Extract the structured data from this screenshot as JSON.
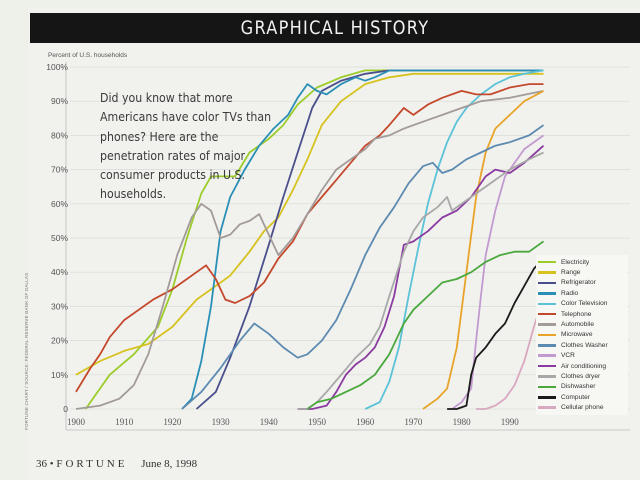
{
  "header": {
    "title": "GRAPHICAL HISTORY"
  },
  "blurb": "Did you know that more Americans have color TVs than phones? Here are the penetration rates of major consumer products in U.S. households.",
  "footer": {
    "page": "36",
    "publication": "FORTUNE",
    "date": "June 8, 1998"
  },
  "source_note": "FORTUNE CHART / SOURCE: FEDERAL RESERVE BANK OF DALLAS",
  "chart_data": {
    "type": "line",
    "title": "GRAPHICAL HISTORY",
    "ylabel": "Percent of U.S. households",
    "xlabel": "",
    "xlim": [
      1900,
      1997
    ],
    "ylim": [
      0,
      100
    ],
    "xticks": [
      "1900",
      "1910",
      "1920",
      "1930",
      "1940",
      "1950",
      "1960",
      "1970",
      "1980",
      "1990"
    ],
    "yticks": [
      "0",
      "10%",
      "20%",
      "30%",
      "40%",
      "50%",
      "60%",
      "70%",
      "80%",
      "90%",
      "100%"
    ],
    "grid": true,
    "legend_position": "bottom-right",
    "series": [
      {
        "name": "Electricity",
        "color": "#9ccc2a",
        "points": [
          [
            1902,
            0
          ],
          [
            1907,
            10
          ],
          [
            1912,
            16
          ],
          [
            1917,
            24
          ],
          [
            1920,
            35
          ],
          [
            1923,
            50
          ],
          [
            1926,
            63
          ],
          [
            1928,
            68
          ],
          [
            1930,
            68
          ],
          [
            1933,
            68
          ],
          [
            1936,
            75
          ],
          [
            1940,
            79
          ],
          [
            1943,
            83
          ],
          [
            1946,
            89
          ],
          [
            1950,
            94
          ],
          [
            1955,
            97
          ],
          [
            1960,
            99
          ],
          [
            1970,
            99
          ],
          [
            1997,
            99
          ]
        ]
      },
      {
        "name": "Range",
        "color": "#d6c21e",
        "points": [
          [
            1900,
            10
          ],
          [
            1905,
            14
          ],
          [
            1910,
            17
          ],
          [
            1915,
            19
          ],
          [
            1920,
            24
          ],
          [
            1925,
            32
          ],
          [
            1930,
            37
          ],
          [
            1932,
            39
          ],
          [
            1936,
            46
          ],
          [
            1939,
            52
          ],
          [
            1942,
            56
          ],
          [
            1945,
            64
          ],
          [
            1948,
            73
          ],
          [
            1951,
            83
          ],
          [
            1955,
            90
          ],
          [
            1960,
            95
          ],
          [
            1965,
            97
          ],
          [
            1970,
            98
          ],
          [
            1997,
            98
          ]
        ]
      },
      {
        "name": "Refrigerator",
        "color": "#4a4f8c",
        "points": [
          [
            1925,
            0
          ],
          [
            1929,
            5
          ],
          [
            1932,
            15
          ],
          [
            1936,
            30
          ],
          [
            1940,
            48
          ],
          [
            1943,
            62
          ],
          [
            1946,
            75
          ],
          [
            1949,
            88
          ],
          [
            1951,
            93
          ],
          [
            1955,
            96
          ],
          [
            1960,
            98
          ],
          [
            1965,
            99
          ],
          [
            1970,
            99
          ],
          [
            1997,
            99
          ]
        ]
      },
      {
        "name": "Radio",
        "color": "#2a8fb6",
        "points": [
          [
            1922,
            0
          ],
          [
            1924,
            3
          ],
          [
            1926,
            14
          ],
          [
            1928,
            30
          ],
          [
            1930,
            52
          ],
          [
            1932,
            62
          ],
          [
            1935,
            70
          ],
          [
            1938,
            77
          ],
          [
            1941,
            82
          ],
          [
            1944,
            86
          ],
          [
            1946,
            91
          ],
          [
            1948,
            95
          ],
          [
            1950,
            93
          ],
          [
            1952,
            92
          ],
          [
            1955,
            95
          ],
          [
            1958,
            97
          ],
          [
            1960,
            96
          ],
          [
            1962,
            97
          ],
          [
            1965,
            99
          ],
          [
            1970,
            99
          ],
          [
            1997,
            99
          ]
        ]
      },
      {
        "name": "Color Television",
        "color": "#5bc2d8",
        "points": [
          [
            1960,
            0
          ],
          [
            1963,
            2
          ],
          [
            1965,
            8
          ],
          [
            1967,
            18
          ],
          [
            1969,
            33
          ],
          [
            1971,
            47
          ],
          [
            1973,
            60
          ],
          [
            1975,
            70
          ],
          [
            1977,
            78
          ],
          [
            1979,
            84
          ],
          [
            1981,
            88
          ],
          [
            1984,
            92
          ],
          [
            1987,
            95
          ],
          [
            1990,
            97
          ],
          [
            1993,
            98
          ],
          [
            1997,
            99
          ]
        ]
      },
      {
        "name": "Telephone",
        "color": "#c4482c",
        "points": [
          [
            1900,
            5
          ],
          [
            1903,
            12
          ],
          [
            1905,
            16
          ],
          [
            1907,
            21
          ],
          [
            1910,
            26
          ],
          [
            1913,
            29
          ],
          [
            1916,
            32
          ],
          [
            1920,
            35
          ],
          [
            1922,
            37
          ],
          [
            1925,
            40
          ],
          [
            1927,
            42
          ],
          [
            1929,
            38
          ],
          [
            1931,
            32
          ],
          [
            1933,
            31
          ],
          [
            1936,
            33
          ],
          [
            1939,
            37
          ],
          [
            1942,
            44
          ],
          [
            1945,
            49
          ],
          [
            1948,
            57
          ],
          [
            1951,
            62
          ],
          [
            1954,
            67
          ],
          [
            1957,
            72
          ],
          [
            1960,
            77
          ],
          [
            1963,
            80
          ],
          [
            1965,
            83
          ],
          [
            1968,
            88
          ],
          [
            1970,
            86
          ],
          [
            1973,
            89
          ],
          [
            1976,
            91
          ],
          [
            1980,
            93
          ],
          [
            1983,
            92
          ],
          [
            1986,
            92
          ],
          [
            1990,
            94
          ],
          [
            1994,
            95
          ],
          [
            1997,
            95
          ]
        ]
      },
      {
        "name": "Automobile",
        "color": "#a39a9a",
        "points": [
          [
            1900,
            0
          ],
          [
            1905,
            1
          ],
          [
            1909,
            3
          ],
          [
            1912,
            7
          ],
          [
            1915,
            16
          ],
          [
            1918,
            30
          ],
          [
            1921,
            45
          ],
          [
            1924,
            56
          ],
          [
            1926,
            60
          ],
          [
            1928,
            58
          ],
          [
            1930,
            50
          ],
          [
            1932,
            51
          ],
          [
            1934,
            54
          ],
          [
            1936,
            55
          ],
          [
            1938,
            57
          ],
          [
            1940,
            51
          ],
          [
            1942,
            45
          ],
          [
            1945,
            50
          ],
          [
            1948,
            57
          ],
          [
            1951,
            64
          ],
          [
            1954,
            70
          ],
          [
            1957,
            73
          ],
          [
            1960,
            76
          ],
          [
            1962,
            79
          ],
          [
            1965,
            80
          ],
          [
            1968,
            82
          ],
          [
            1972,
            84
          ],
          [
            1976,
            86
          ],
          [
            1980,
            88
          ],
          [
            1984,
            90
          ],
          [
            1990,
            91
          ],
          [
            1997,
            93
          ]
        ]
      },
      {
        "name": "Microwave",
        "color": "#e8a42a",
        "points": [
          [
            1972,
            0
          ],
          [
            1975,
            3
          ],
          [
            1977,
            6
          ],
          [
            1979,
            18
          ],
          [
            1981,
            40
          ],
          [
            1983,
            62
          ],
          [
            1985,
            75
          ],
          [
            1987,
            82
          ],
          [
            1990,
            86
          ],
          [
            1993,
            90
          ],
          [
            1997,
            93
          ]
        ]
      },
      {
        "name": "Clothes Washer",
        "color": "#5d8ab0",
        "points": [
          [
            1922,
            0
          ],
          [
            1926,
            5
          ],
          [
            1930,
            12
          ],
          [
            1934,
            20
          ],
          [
            1937,
            25
          ],
          [
            1940,
            22
          ],
          [
            1943,
            18
          ],
          [
            1946,
            15
          ],
          [
            1948,
            16
          ],
          [
            1951,
            20
          ],
          [
            1954,
            26
          ],
          [
            1957,
            35
          ],
          [
            1960,
            45
          ],
          [
            1963,
            53
          ],
          [
            1966,
            59
          ],
          [
            1969,
            66
          ],
          [
            1972,
            71
          ],
          [
            1974,
            72
          ],
          [
            1976,
            69
          ],
          [
            1978,
            70
          ],
          [
            1981,
            73
          ],
          [
            1984,
            75
          ],
          [
            1987,
            77
          ],
          [
            1990,
            78
          ],
          [
            1994,
            80
          ],
          [
            1997,
            83
          ]
        ]
      },
      {
        "name": "VCR",
        "color": "#c39ad0",
        "points": [
          [
            1978,
            0
          ],
          [
            1980,
            2
          ],
          [
            1982,
            6
          ],
          [
            1983,
            20
          ],
          [
            1984,
            33
          ],
          [
            1985,
            45
          ],
          [
            1987,
            58
          ],
          [
            1989,
            68
          ],
          [
            1991,
            72
          ],
          [
            1993,
            76
          ],
          [
            1997,
            80
          ]
        ]
      },
      {
        "name": "Air conditioning",
        "color": "#8a3aa0",
        "points": [
          [
            1946,
            0
          ],
          [
            1949,
            0
          ],
          [
            1952,
            1
          ],
          [
            1954,
            5
          ],
          [
            1956,
            10
          ],
          [
            1958,
            13
          ],
          [
            1960,
            15
          ],
          [
            1962,
            18
          ],
          [
            1964,
            24
          ],
          [
            1966,
            33
          ],
          [
            1968,
            48
          ],
          [
            1970,
            49
          ],
          [
            1973,
            52
          ],
          [
            1976,
            56
          ],
          [
            1979,
            58
          ],
          [
            1982,
            62
          ],
          [
            1985,
            68
          ],
          [
            1987,
            70
          ],
          [
            1990,
            69
          ],
          [
            1993,
            72
          ],
          [
            1997,
            77
          ]
        ]
      },
      {
        "name": "Clothes dryer",
        "color": "#a8a8a8",
        "points": [
          [
            1946,
            0
          ],
          [
            1948,
            0
          ],
          [
            1950,
            2
          ],
          [
            1952,
            5
          ],
          [
            1955,
            10
          ],
          [
            1958,
            15
          ],
          [
            1961,
            19
          ],
          [
            1963,
            24
          ],
          [
            1965,
            33
          ],
          [
            1968,
            46
          ],
          [
            1970,
            52
          ],
          [
            1972,
            56
          ],
          [
            1975,
            59
          ],
          [
            1977,
            62
          ],
          [
            1978,
            58
          ],
          [
            1981,
            61
          ],
          [
            1984,
            64
          ],
          [
            1987,
            67
          ],
          [
            1990,
            70
          ],
          [
            1994,
            73
          ],
          [
            1997,
            75
          ]
        ]
      },
      {
        "name": "Dishwasher",
        "color": "#4aa83c",
        "points": [
          [
            1948,
            0
          ],
          [
            1950,
            2
          ],
          [
            1953,
            3
          ],
          [
            1956,
            5
          ],
          [
            1959,
            7
          ],
          [
            1962,
            10
          ],
          [
            1965,
            16
          ],
          [
            1968,
            25
          ],
          [
            1970,
            29
          ],
          [
            1973,
            33
          ],
          [
            1976,
            37
          ],
          [
            1979,
            38
          ],
          [
            1982,
            40
          ],
          [
            1985,
            43
          ],
          [
            1988,
            45
          ],
          [
            1991,
            46
          ],
          [
            1994,
            46
          ],
          [
            1997,
            49
          ]
        ]
      },
      {
        "name": "Computer",
        "color": "#1a1a1a",
        "points": [
          [
            1977,
            0
          ],
          [
            1979,
            0
          ],
          [
            1981,
            1
          ],
          [
            1982,
            10
          ],
          [
            1983,
            15
          ],
          [
            1985,
            18
          ],
          [
            1987,
            22
          ],
          [
            1989,
            25
          ],
          [
            1991,
            31
          ],
          [
            1993,
            36
          ],
          [
            1995,
            41
          ],
          [
            1997,
            44
          ]
        ]
      },
      {
        "name": "Cellular phone",
        "color": "#d8a8c0",
        "points": [
          [
            1983,
            0
          ],
          [
            1985,
            0
          ],
          [
            1987,
            1
          ],
          [
            1989,
            3
          ],
          [
            1991,
            7
          ],
          [
            1993,
            14
          ],
          [
            1995,
            24
          ],
          [
            1997,
            33
          ]
        ]
      }
    ]
  }
}
